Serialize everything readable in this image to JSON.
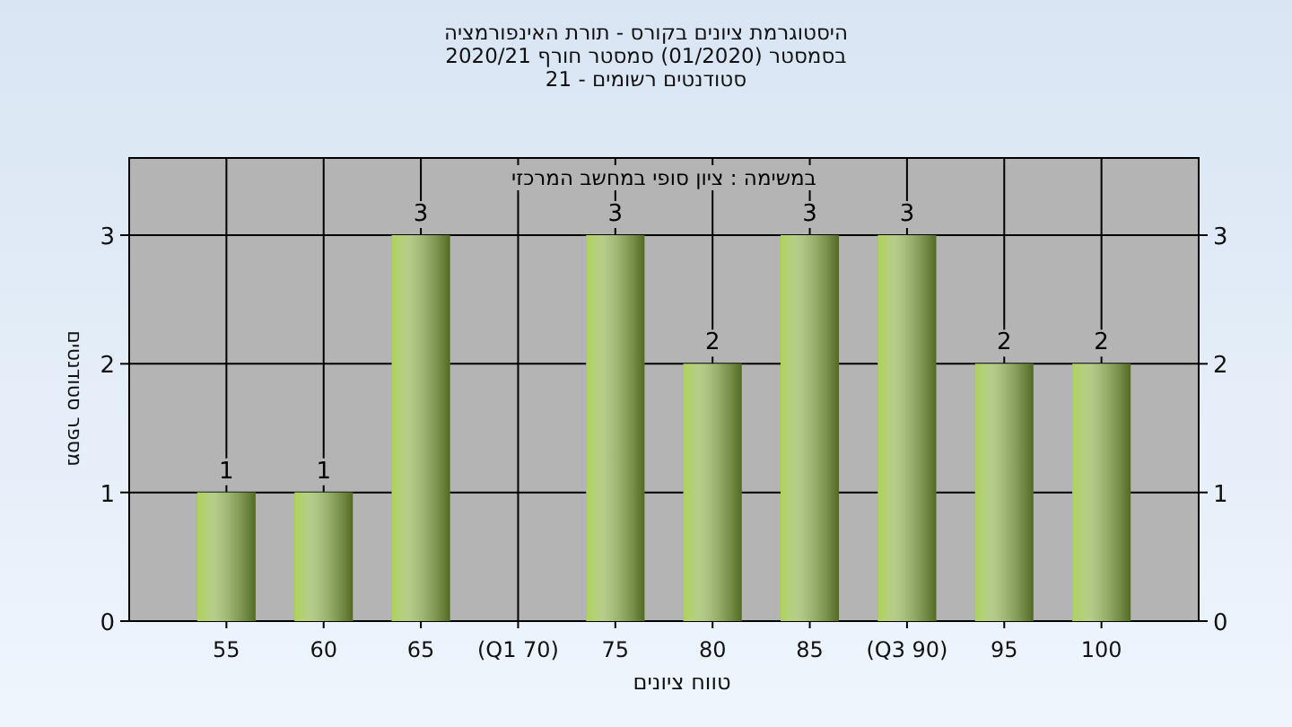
{
  "chart_data": {
    "type": "bar",
    "title": "היסטוגרמת ציונים בקורס - תורת האינפורמציה\nבסמסטר  (01/2020)  סמסטר חורף  2020/21\nסטודנטים רשומים - 21",
    "subtitle": "במשימה : ציון סופי במחשב המרכזי",
    "xlabel": "טווח ציונים",
    "ylabel": "מספר סטודנטים",
    "categories": [
      "55",
      "60",
      "65",
      "(Q1 70)",
      "75",
      "80",
      "85",
      "(Q3 90)",
      "95",
      "100"
    ],
    "values": [
      1,
      1,
      3,
      null,
      3,
      2,
      3,
      3,
      2,
      2
    ],
    "color": "#8db04a",
    "data_labels": true,
    "ylim": [
      0,
      3.6
    ],
    "yticks": [
      0,
      1,
      2,
      3
    ],
    "y2lim": [
      0,
      3.6
    ],
    "y2ticks": [
      0,
      1,
      2,
      3
    ],
    "grid": true
  }
}
